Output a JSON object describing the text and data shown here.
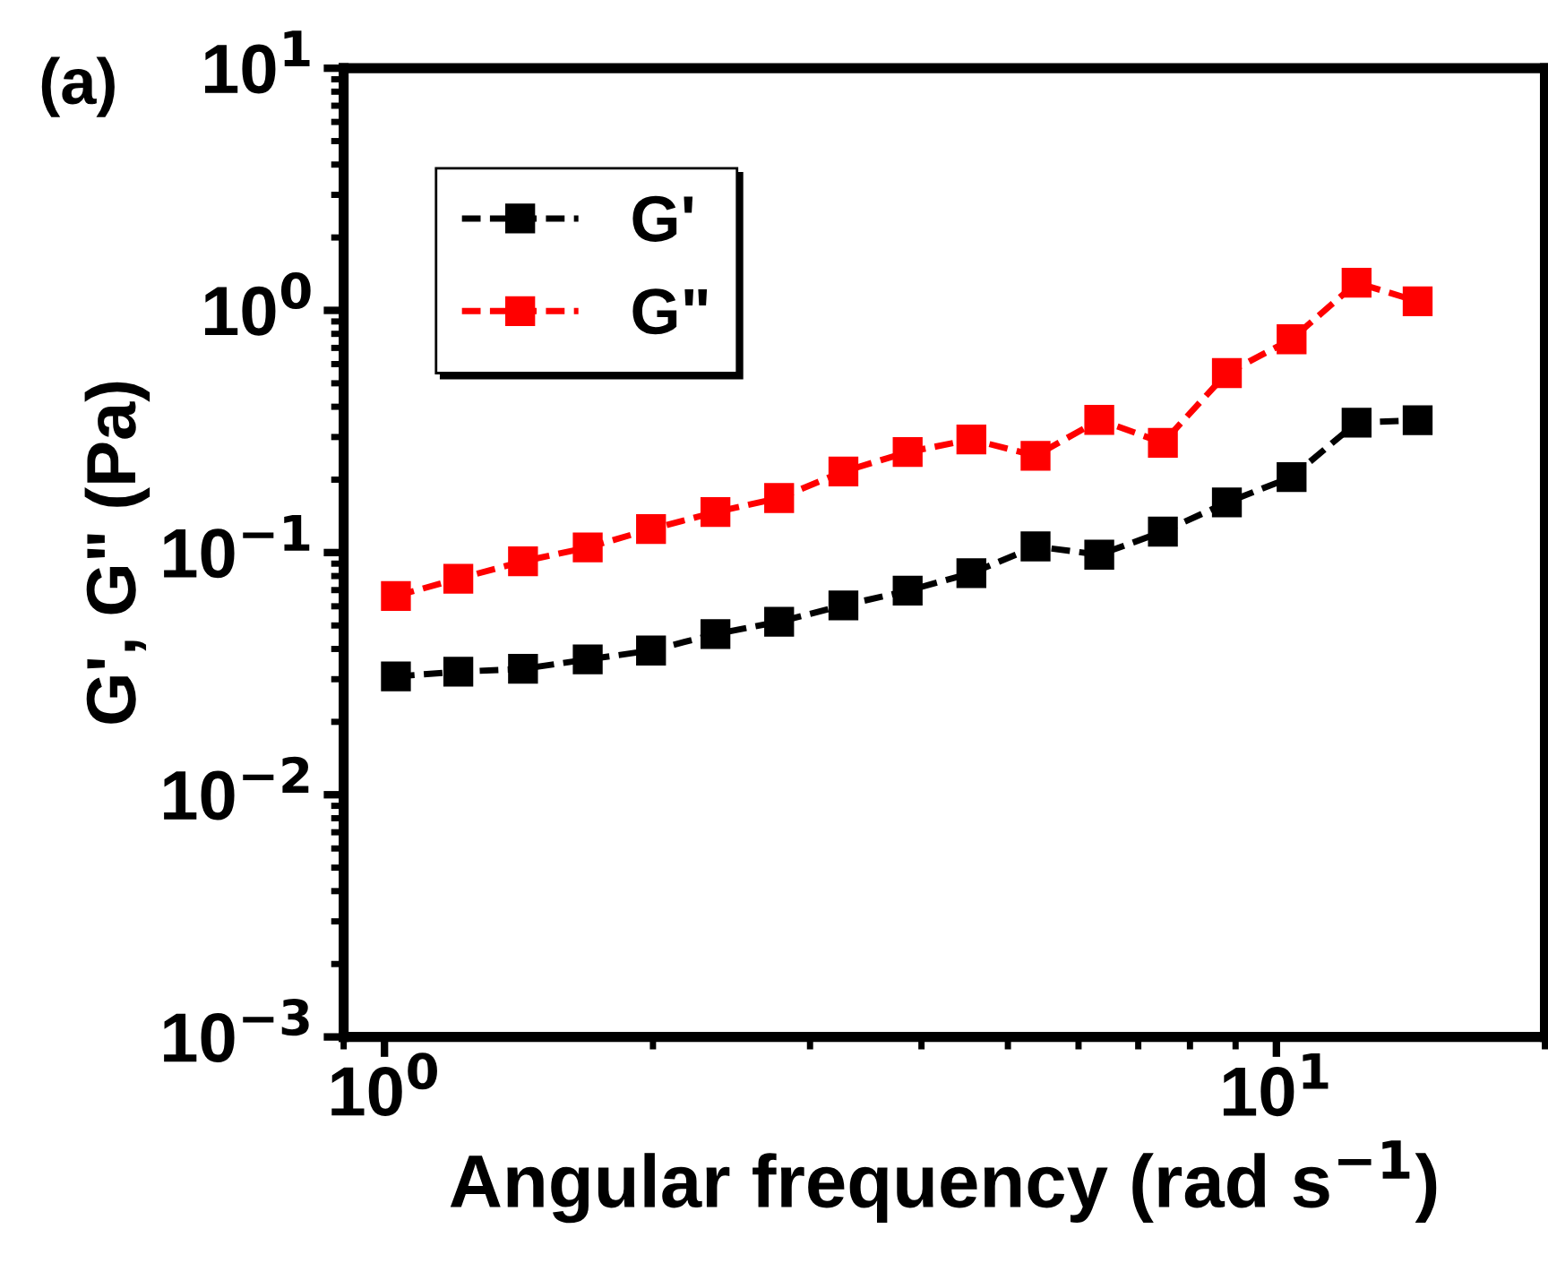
{
  "chart_data": {
    "type": "line",
    "xlabel": "Angular frequency (rad s$^{−1}$)",
    "ylabel": "G', G\" (Pa)",
    "annotations": [
      "(a)"
    ],
    "x": [
      1.03,
      1.21,
      1.43,
      1.69,
      1.99,
      2.35,
      2.77,
      3.27,
      3.86,
      4.55,
      5.37,
      6.33,
      7.46,
      8.8,
      10.4,
      12.3,
      14.4
    ],
    "series": [
      {
        "name": "G'",
        "color": "#000000",
        "values": [
          0.0308,
          0.0322,
          0.0331,
          0.0362,
          0.0394,
          0.0461,
          0.0518,
          0.0605,
          0.0696,
          0.0822,
          0.106,
          0.098,
          0.122,
          0.161,
          0.205,
          0.344,
          0.352
        ]
      },
      {
        "name": "G\"",
        "color": "#ff0000",
        "values": [
          0.0662,
          0.078,
          0.092,
          0.105,
          0.125,
          0.147,
          0.168,
          0.216,
          0.26,
          0.293,
          0.251,
          0.353,
          0.284,
          0.551,
          0.76,
          1.3,
          1.09
        ]
      }
    ],
    "log": "xy",
    "xlim": [
      0.9,
      20
    ],
    "ylim": [
      0.001,
      10
    ],
    "xticks": [
      {
        "value": 1,
        "label": "10$^{0}$"
      },
      {
        "value": 10,
        "label": "10$^{1}$"
      }
    ],
    "yticks": [
      {
        "value": 0.001,
        "label": "10$^{−3}$"
      },
      {
        "value": 0.01,
        "label": "10$^{−2}$"
      },
      {
        "value": 0.1,
        "label": "10$^{−1}$"
      },
      {
        "value": 1,
        "label": "10$^{0}$"
      },
      {
        "value": 10,
        "label": "10$^{1}$"
      }
    ],
    "grid": false,
    "legend": "top left",
    "marker": "square",
    "line_style": "dashed"
  }
}
